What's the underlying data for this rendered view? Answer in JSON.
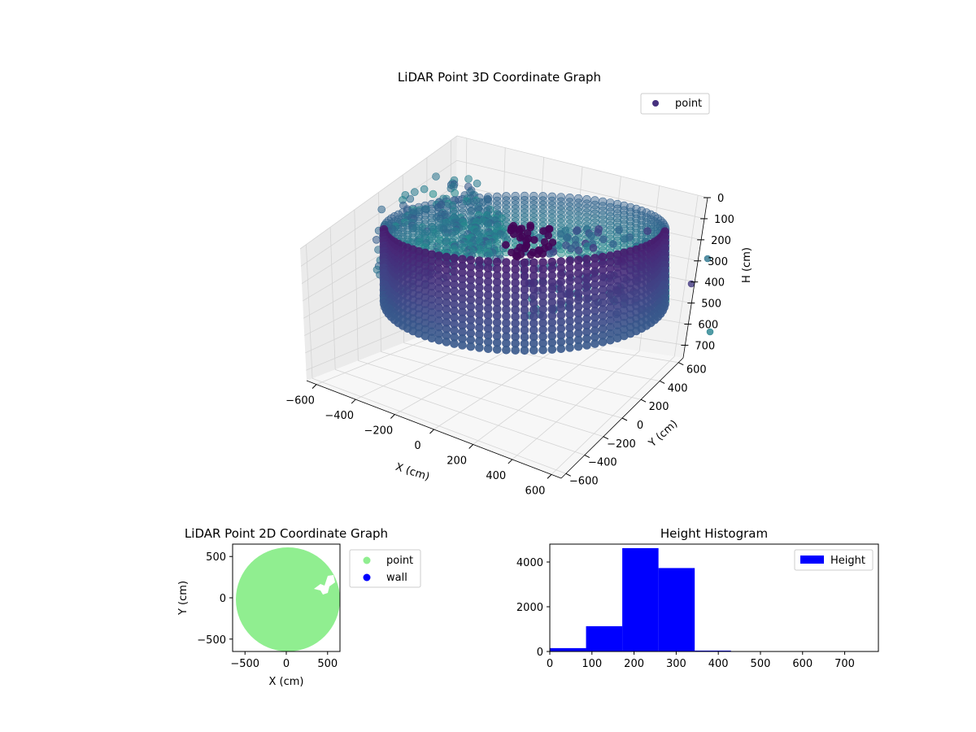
{
  "chart_data": [
    {
      "type": "scatter3d",
      "title": "LiDAR Point 3D Coordinate Graph",
      "xlabel": "X (cm)",
      "ylabel": "Y (cm)",
      "zlabel": "H (cm)",
      "xticks": [
        "−600",
        "−400",
        "−200",
        "0",
        "200",
        "400",
        "600"
      ],
      "yticks": [
        "−600",
        "−400",
        "−200",
        "0",
        "200",
        "400",
        "600"
      ],
      "zticks": [
        "0",
        "100",
        "200",
        "300",
        "400",
        "500",
        "600",
        "700"
      ],
      "xlim": [
        -650,
        650
      ],
      "ylim": [
        -650,
        650
      ],
      "zlim": [
        0,
        760
      ],
      "z_inverted": true,
      "grid": true,
      "colormap": "viridis",
      "legend": {
        "position": "upper-right",
        "entries": [
          {
            "name": "point",
            "color": "#46307e"
          }
        ]
      },
      "structure": {
        "ring_radius_cm": 620,
        "ring_height_range_cm": [
          0,
          760
        ],
        "fan_center_cm": [
          150,
          250
        ]
      }
    },
    {
      "type": "scatter",
      "title": "LiDAR Point 2D Coordinate Graph",
      "xlabel": "X (cm)",
      "ylabel": "Y (cm)",
      "xticks": [
        "−500",
        "0",
        "500"
      ],
      "yticks": [
        "−500",
        "0",
        "500"
      ],
      "xlim": [
        -650,
        650
      ],
      "ylim": [
        -650,
        650
      ],
      "legend": {
        "position": "outside-right",
        "entries": [
          {
            "name": "point",
            "color": "#90ee90"
          },
          {
            "name": "wall",
            "color": "#0000ff"
          }
        ]
      },
      "disc_radius_cm": 630
    },
    {
      "type": "bar",
      "title": "Height Histogram",
      "xticks": [
        "0",
        "100",
        "200",
        "300",
        "400",
        "500",
        "600",
        "700"
      ],
      "yticks": [
        "0",
        "2000",
        "4000"
      ],
      "xlim": [
        0,
        780
      ],
      "ylim": [
        0,
        4800
      ],
      "bins": [
        {
          "x0": 0,
          "x1": 86,
          "value": 150
        },
        {
          "x0": 86,
          "x1": 172,
          "value": 1130
        },
        {
          "x0": 172,
          "x1": 258,
          "value": 4620
        },
        {
          "x0": 258,
          "x1": 344,
          "value": 3730
        },
        {
          "x0": 344,
          "x1": 430,
          "value": 40
        },
        {
          "x0": 430,
          "x1": 516,
          "value": 5
        },
        {
          "x0": 516,
          "x1": 602,
          "value": 3
        },
        {
          "x0": 602,
          "x1": 688,
          "value": 2
        },
        {
          "x0": 688,
          "x1": 774,
          "value": 2
        }
      ],
      "bar_color": "#0000ff",
      "legend": {
        "position": "upper-right",
        "entries": [
          {
            "name": "Height",
            "color": "#0000ff"
          }
        ]
      }
    }
  ]
}
